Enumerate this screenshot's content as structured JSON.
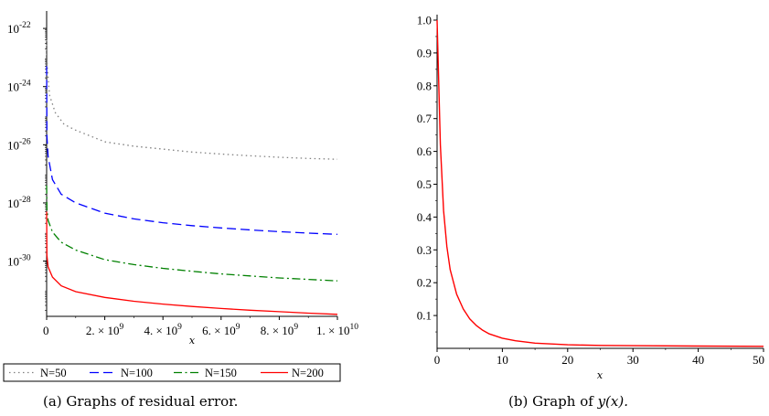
{
  "chart_data": [
    {
      "type": "line",
      "caption": "(a)  Graphs of residual error.",
      "xlabel": "x",
      "ylabel": "",
      "xlim": [
        0,
        10000000000
      ],
      "ylim_log10": [
        -31.9,
        -21.4
      ],
      "yscale": "log",
      "x_ticks": [
        {
          "label": "0",
          "value": 0
        },
        {
          "label": "2. × 10",
          "exp": "9",
          "value": 2000000000
        },
        {
          "label": "4. × 10",
          "exp": "9",
          "value": 4000000000
        },
        {
          "label": "6. × 10",
          "exp": "9",
          "value": 6000000000
        },
        {
          "label": "8. × 10",
          "exp": "9",
          "value": 8000000000
        },
        {
          "label": "1. × 10",
          "exp": "10",
          "value": 10000000000
        }
      ],
      "y_ticks": [
        {
          "label": "10",
          "exp": "-22",
          "log10": -22
        },
        {
          "label": "10",
          "exp": "-24",
          "log10": -24
        },
        {
          "label": "10",
          "exp": "-26",
          "log10": -26
        },
        {
          "label": "10",
          "exp": "-28",
          "log10": -28
        },
        {
          "label": "10",
          "exp": "-30",
          "log10": -30
        }
      ],
      "legend_position": "bottom",
      "series": [
        {
          "name": "N=50",
          "color": "#808080",
          "dash": "dot",
          "x": [
            0,
            20000000,
            100000000,
            300000000,
            600000000,
            1000000000,
            2000000000,
            3000000000,
            4000000000,
            5000000000,
            6000000000,
            7000000000,
            8000000000,
            9000000000,
            10000000000
          ],
          "log10_y": [
            -22.4,
            -23.3,
            -24.3,
            -24.9,
            -25.3,
            -25.5,
            -25.9,
            -26.05,
            -26.15,
            -26.25,
            -26.32,
            -26.38,
            -26.43,
            -26.47,
            -26.5
          ]
        },
        {
          "name": "N=100",
          "color": "#0000ff",
          "dash": "dash",
          "x": [
            0,
            10000000,
            50000000,
            200000000,
            500000000,
            1000000000,
            2000000000,
            3000000000,
            4000000000,
            5000000000,
            6000000000,
            7000000000,
            8000000000,
            9000000000,
            10000000000
          ],
          "log10_y": [
            -23.3,
            -25.7,
            -26.4,
            -27.2,
            -27.7,
            -28.0,
            -28.35,
            -28.55,
            -28.68,
            -28.78,
            -28.86,
            -28.93,
            -28.99,
            -29.04,
            -29.08
          ]
        },
        {
          "name": "N=150",
          "color": "#008000",
          "dash": "dashdot",
          "x": [
            0,
            10000000,
            50000000,
            200000000,
            500000000,
            1000000000,
            2000000000,
            3000000000,
            4000000000,
            5000000000,
            6000000000,
            7000000000,
            8000000000,
            9000000000,
            10000000000
          ],
          "log10_y": [
            -27.4,
            -28.2,
            -28.6,
            -29.0,
            -29.35,
            -29.62,
            -29.95,
            -30.12,
            -30.25,
            -30.35,
            -30.44,
            -30.51,
            -30.58,
            -30.63,
            -30.68
          ]
        },
        {
          "name": "N=200",
          "color": "#ff0000",
          "dash": "solid",
          "x": [
            0,
            10000000,
            50000000,
            200000000,
            500000000,
            1000000000,
            2000000000,
            3000000000,
            4000000000,
            5000000000,
            6000000000,
            7000000000,
            8000000000,
            9000000000,
            10000000000
          ],
          "log10_y": [
            -28.3,
            -29.8,
            -30.2,
            -30.55,
            -30.85,
            -31.05,
            -31.25,
            -31.38,
            -31.48,
            -31.56,
            -31.63,
            -31.69,
            -31.74,
            -31.79,
            -31.83
          ]
        }
      ]
    },
    {
      "type": "line",
      "caption": "(b)  Graph of ",
      "caption_math": "y(x).",
      "xlabel": "x",
      "ylabel": "",
      "xlim": [
        0,
        50
      ],
      "ylim": [
        0,
        1.0
      ],
      "x_ticks": [
        "0",
        "10",
        "20",
        "30",
        "40",
        "50"
      ],
      "y_ticks": [
        "0.1",
        "0.2",
        "0.3",
        "0.4",
        "0.5",
        "0.6",
        "0.7",
        "0.8",
        "0.9",
        "1.0"
      ],
      "series": [
        {
          "name": "",
          "color": "#ff0000",
          "x": [
            0,
            0.5,
            1,
            1.5,
            2,
            3,
            4,
            5,
            6,
            7,
            8,
            10,
            12,
            15,
            20,
            25,
            30,
            40,
            50
          ],
          "y": [
            1.0,
            0.62,
            0.42,
            0.31,
            0.24,
            0.165,
            0.12,
            0.09,
            0.07,
            0.055,
            0.044,
            0.031,
            0.023,
            0.016,
            0.011,
            0.009,
            0.008,
            0.007,
            0.006
          ]
        }
      ]
    }
  ]
}
